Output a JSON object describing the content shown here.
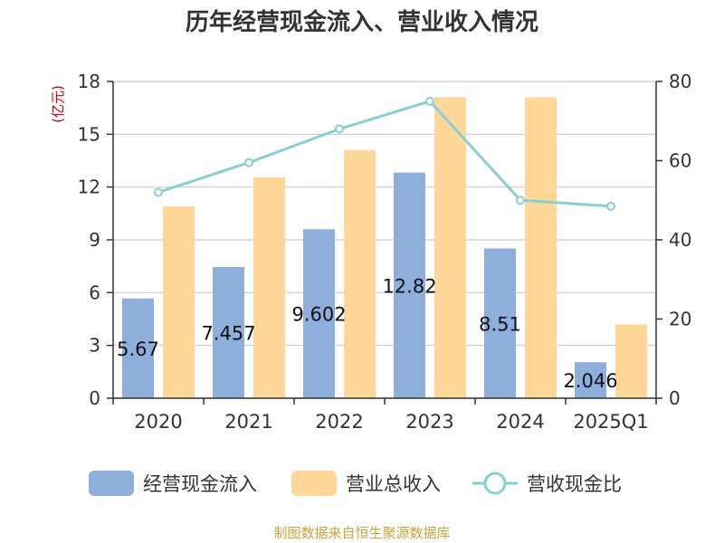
{
  "chart_data": {
    "type": "bar",
    "title": "历年经营现金流入、营业收入情况",
    "categories": [
      "2020",
      "2021",
      "2022",
      "2023",
      "2024",
      "2025Q1"
    ],
    "series": [
      {
        "name": "经营现金流入",
        "type": "bar",
        "axis": "left",
        "color": "#8eaedb",
        "values": [
          5.67,
          7.457,
          9.602,
          12.82,
          8.51,
          2.046
        ],
        "labels": [
          "5.67",
          "7.457",
          "9.602",
          "12.82",
          "8.51",
          "2.046"
        ]
      },
      {
        "name": "营业总收入",
        "type": "bar",
        "axis": "left",
        "color": "#ffd899",
        "values": [
          10.9,
          12.55,
          14.1,
          17.1,
          17.1,
          4.2
        ]
      },
      {
        "name": "营收现金比",
        "type": "line",
        "axis": "right",
        "color": "#85d0d4",
        "values": [
          52,
          59.5,
          68,
          75,
          50,
          48.5
        ]
      }
    ],
    "y_left": {
      "unit": "(亿元)",
      "ylim": [
        0,
        18
      ],
      "ticks": [
        "0",
        "3",
        "6",
        "9",
        "12",
        "15",
        "18"
      ]
    },
    "y_right": {
      "unit": "%",
      "ylim": [
        0,
        80
      ],
      "ticks": [
        "0",
        "20",
        "40",
        "60",
        "80"
      ]
    },
    "grid": true,
    "legend_position": "bottom"
  },
  "source": "制图数据来自恒生聚源数据库",
  "colors": {
    "unit_red": "#cc0000",
    "source": "#c9a43a",
    "axis": "#333333",
    "grid": "#cccccc"
  }
}
